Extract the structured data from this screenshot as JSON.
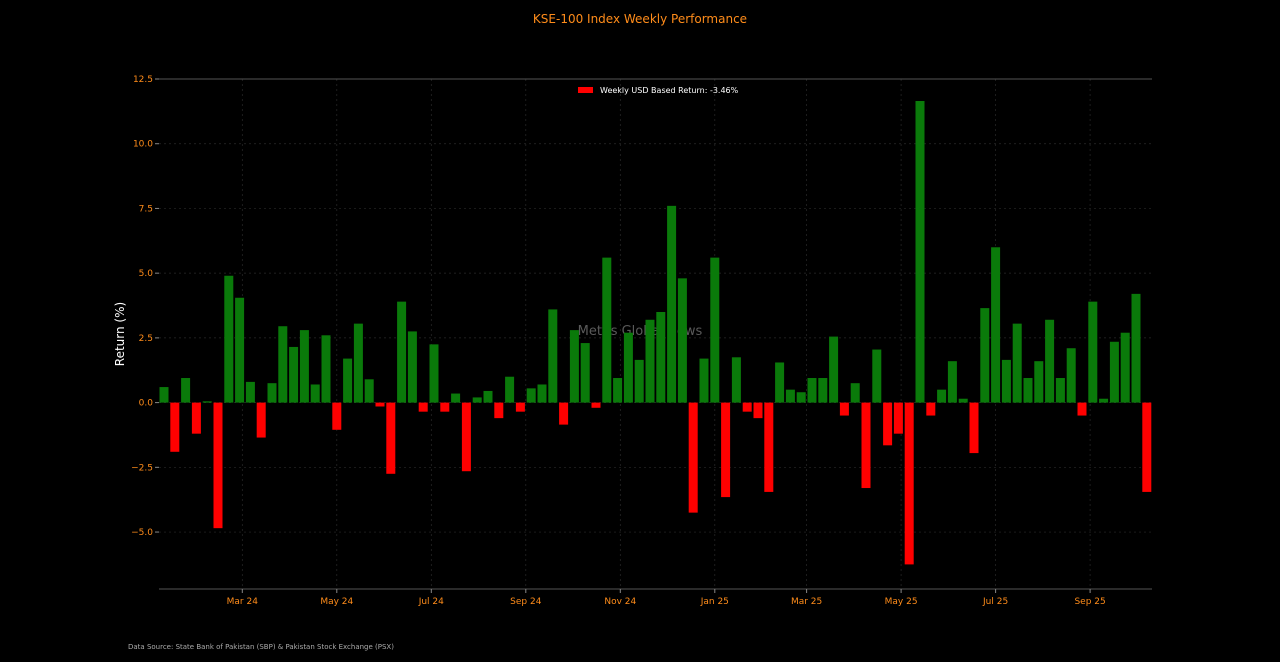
{
  "chart_data": {
    "type": "bar",
    "title": "KSE-100 Index Weekly Performance",
    "xlabel": "",
    "ylabel": "Return (%)",
    "ylim": [
      -7.2,
      12.5
    ],
    "yticks": [
      -5.0,
      -2.5,
      0.0,
      2.5,
      5.0,
      7.5,
      10.0,
      12.5
    ],
    "ytick_labels": [
      "−5.0",
      "−2.5",
      "0.0",
      "2.5",
      "5.0",
      "7.5",
      "10.0",
      "12.5"
    ],
    "xticks": [
      {
        "label": "Mar 24",
        "week": 7.25
      },
      {
        "label": "May 24",
        "week": 16
      },
      {
        "label": "Jul 24",
        "week": 24.75
      },
      {
        "label": "Sep 24",
        "week": 33.5
      },
      {
        "label": "Nov 24",
        "week": 42.25
      },
      {
        "label": "Jan 25",
        "week": 51
      },
      {
        "label": "Mar 25",
        "week": 59.5
      },
      {
        "label": "May 25",
        "week": 68.25
      },
      {
        "label": "Jul 25",
        "week": 77
      },
      {
        "label": "Sep 25",
        "week": 85.75
      }
    ],
    "grid": true,
    "legend": {
      "entry": "Weekly USD Based Return: -3.46%",
      "placement": "top-center"
    },
    "colors": {
      "positive": "#0a7a0a",
      "negative": "#ff0000",
      "title": "#ff8c1a",
      "ticks": "#ff8c1a",
      "axis_label": "#ffffff"
    },
    "series": [
      {
        "name": "Weekly USD Based Return: -3.46%",
        "values": [
          0.6,
          -1.9,
          0.95,
          -1.2,
          0.05,
          -4.85,
          4.9,
          4.05,
          0.8,
          -1.35,
          0.75,
          2.95,
          2.15,
          2.8,
          0.7,
          2.6,
          -1.05,
          1.7,
          3.05,
          0.9,
          -0.15,
          -2.75,
          3.9,
          2.75,
          -0.35,
          2.25,
          -0.35,
          0.35,
          -2.65,
          0.2,
          0.45,
          -0.6,
          1.0,
          -0.35,
          0.55,
          0.7,
          3.6,
          -0.85,
          2.8,
          2.3,
          -0.2,
          5.6,
          0.95,
          2.7,
          1.65,
          3.2,
          3.5,
          7.6,
          4.8,
          -4.25,
          1.7,
          5.6,
          -3.65,
          1.75,
          -0.35,
          -0.6,
          -3.45,
          1.55,
          0.5,
          0.4,
          0.95,
          0.95,
          2.55,
          -0.5,
          0.75,
          -3.3,
          2.05,
          -1.65,
          -1.2,
          -6.25,
          11.65,
          -0.5,
          0.5,
          1.6,
          0.15,
          -1.95,
          3.65,
          6.0,
          1.65,
          3.05,
          0.95,
          1.6,
          3.2,
          0.95,
          2.1,
          -0.5,
          3.9,
          0.15,
          2.35,
          2.7,
          4.2,
          -3.45
        ]
      }
    ]
  },
  "watermark": "Mettis Global News",
  "footer": "Data Source: State Bank of Pakistan (SBP) & Pakistan Stock Exchange (PSX)"
}
